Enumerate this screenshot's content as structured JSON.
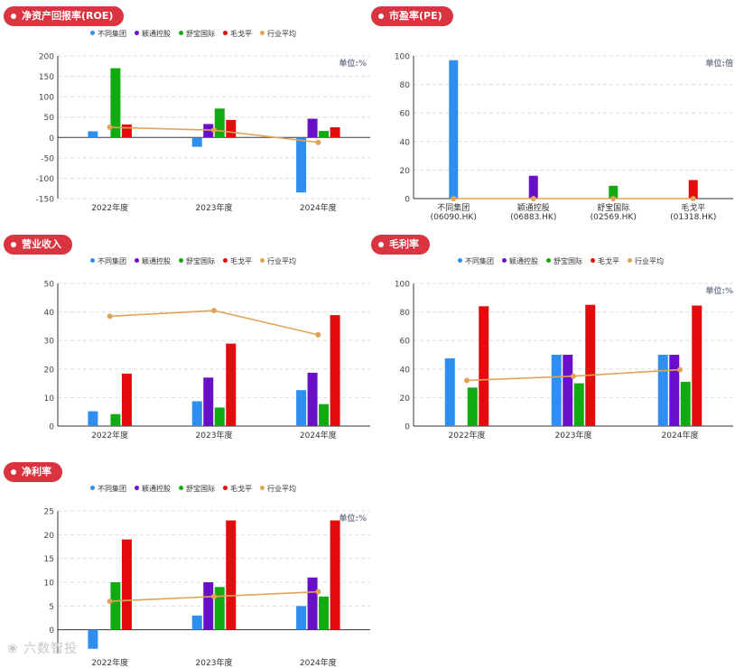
{
  "legend": [
    {
      "name": "不同集团",
      "color": "#2e8ff0"
    },
    {
      "name": "颖通控股",
      "color": "#6a0fc8"
    },
    {
      "name": "舒宝国际",
      "color": "#12aa12"
    },
    {
      "name": "毛戈平",
      "color": "#e30b0b"
    },
    {
      "name": "行业平均",
      "color": "#e0a35a"
    }
  ],
  "watermark": "六数智投",
  "chart_data": [
    {
      "id": "roe",
      "type": "bar",
      "title": "净资产回报率(ROE)",
      "unit": "单位:%",
      "show_legend": true,
      "categories": [
        "2022年度",
        "2023年度",
        "2024年度"
      ],
      "ylim": [
        -150,
        200
      ],
      "yticks": [
        -150,
        -100,
        -50,
        0,
        50,
        100,
        150,
        200
      ],
      "series": [
        {
          "name": "不同集团",
          "values": [
            15,
            -23,
            -135
          ]
        },
        {
          "name": "颖通控股",
          "values": [
            null,
            33,
            46
          ]
        },
        {
          "name": "舒宝国际",
          "values": [
            170,
            71,
            16
          ]
        },
        {
          "name": "毛戈平",
          "values": [
            32,
            43,
            25
          ]
        }
      ],
      "line": {
        "name": "行业平均",
        "values": [
          25,
          18,
          -12
        ]
      }
    },
    {
      "id": "pe",
      "type": "bar",
      "title": "市盈率(PE)",
      "unit": "单位:倍",
      "show_legend": false,
      "categories": [
        "不同集团\n(06090.HK)",
        "颖通控股\n(06883.HK)",
        "舒宝国际\n(02569.HK)",
        "毛戈平\n(01318.HK)"
      ],
      "ylim": [
        0,
        100
      ],
      "yticks": [
        0,
        20,
        40,
        60,
        80,
        100
      ],
      "series": [
        {
          "name": "市盈率",
          "values": [
            97,
            16,
            9,
            13
          ],
          "colors": [
            "#2e8ff0",
            "#6a0fc8",
            "#12aa12",
            "#e30b0b"
          ]
        }
      ],
      "line": {
        "name": "行业平均",
        "values": [
          0,
          0,
          0,
          0
        ]
      }
    },
    {
      "id": "revenue",
      "type": "bar",
      "title": "营业收入",
      "unit": "",
      "show_legend": true,
      "categories": [
        "2022年度",
        "2023年度",
        "2024年度"
      ],
      "ylim": [
        0,
        50
      ],
      "yticks": [
        0,
        10,
        20,
        30,
        40,
        50
      ],
      "series": [
        {
          "name": "不同集团",
          "values": [
            5.2,
            8.7,
            12.6
          ]
        },
        {
          "name": "颖通控股",
          "values": [
            null,
            17,
            18.7
          ]
        },
        {
          "name": "舒宝国际",
          "values": [
            4.2,
            6.5,
            7.7
          ]
        },
        {
          "name": "毛戈平",
          "values": [
            18.4,
            28.9,
            38.9
          ]
        }
      ],
      "line": {
        "name": "行业平均",
        "values": [
          38.5,
          40.5,
          32
        ]
      }
    },
    {
      "id": "gross",
      "type": "bar",
      "title": "毛利率",
      "unit": "单位:%",
      "show_legend": true,
      "categories": [
        "2022年度",
        "2023年度",
        "2024年度"
      ],
      "ylim": [
        0,
        100
      ],
      "yticks": [
        0,
        20,
        40,
        60,
        80,
        100
      ],
      "series": [
        {
          "name": "不同集团",
          "values": [
            47.5,
            50,
            50
          ]
        },
        {
          "name": "颖通控股",
          "values": [
            null,
            50,
            50
          ]
        },
        {
          "name": "舒宝国际",
          "values": [
            27,
            30,
            31
          ]
        },
        {
          "name": "毛戈平",
          "values": [
            84,
            85,
            84.5
          ]
        }
      ],
      "line": {
        "name": "行业平均",
        "values": [
          32,
          35,
          39.5
        ]
      }
    },
    {
      "id": "net",
      "type": "bar",
      "title": "净利率",
      "unit": "单位:%",
      "show_legend": true,
      "categories": [
        "2022年度",
        "2023年度",
        "2024年度"
      ],
      "ylim": [
        -5,
        25
      ],
      "yticks": [
        0,
        5,
        10,
        15,
        20,
        25
      ],
      "series": [
        {
          "name": "不同集团",
          "values": [
            -4,
            3,
            5
          ]
        },
        {
          "name": "颖通控股",
          "values": [
            null,
            10,
            11
          ]
        },
        {
          "name": "舒宝国际",
          "values": [
            10,
            9,
            7
          ]
        },
        {
          "name": "毛戈平",
          "values": [
            19,
            23,
            23
          ]
        }
      ],
      "line": {
        "name": "行业平均",
        "values": [
          6,
          7,
          8
        ]
      }
    }
  ]
}
